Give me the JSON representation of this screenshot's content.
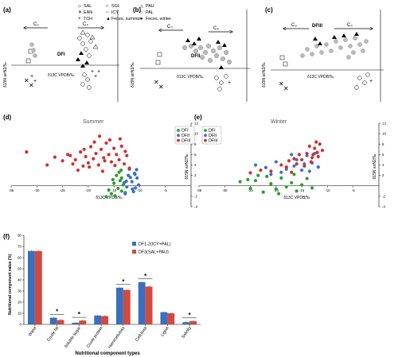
{
  "panels": {
    "a": {
      "label": "(a)",
      "c3": "C₃",
      "c4": "C₄",
      "region": "DFI"
    },
    "b": {
      "label": "(b)",
      "c3": "C₃",
      "c4": "C₄",
      "region": "DFII"
    },
    "c": {
      "label": "(c)",
      "c3": "C₃",
      "c4": "C₄",
      "region": "DFIII"
    },
    "d": {
      "label": "(d)",
      "title": "Summer"
    },
    "e": {
      "label": "(e)",
      "title": "Winter"
    },
    "f": {
      "label": "(f)"
    }
  },
  "axis_labels": {
    "x": "δ13C VPDB/‰",
    "y": "δ15N airN2/‰"
  },
  "legend_species": [
    "SAL",
    "SGL",
    "PAU",
    "EAN",
    "ICY",
    "PAL",
    "TCH",
    "Feces, summer",
    "Feces, winter"
  ],
  "legend_groups": [
    "DFI",
    "DFII",
    "DFIII"
  ],
  "colors": {
    "DFI": "#2aa02a",
    "DFII": "#3a6fd0",
    "DFIII": "#d03030",
    "bar1": "#3a6fc0",
    "bar2": "#d04a40"
  },
  "chart_data": [
    {
      "type": "scatter",
      "panel": "d",
      "title": "Summer",
      "xlabel": "δ13C VPDB/‰",
      "ylabel": "δ15N airN2/‰",
      "xlim": [
        -35,
        0
      ],
      "ylim": [
        -4,
        12
      ],
      "xticks": [
        -35,
        -30,
        -25,
        -20,
        -15,
        -10,
        -5
      ],
      "yticks": [
        -4,
        -2,
        2,
        4,
        6,
        8,
        10,
        12
      ],
      "legend": [
        "DFI",
        "DFII",
        "DFIII"
      ],
      "series": [
        {
          "name": "DFI",
          "points": [
            [
              -13.5,
              1.5
            ],
            [
              -14.5,
              2.0
            ],
            [
              -13.8,
              1.0
            ],
            [
              -15.0,
              0.5
            ],
            [
              -14.2,
              -0.5
            ],
            [
              -13.5,
              -1.0
            ],
            [
              -15.5,
              -1.5
            ],
            [
              -16.0,
              -0.8
            ],
            [
              -14.0,
              2.6
            ],
            [
              -13.2,
              0.2
            ],
            [
              -12.8,
              -1.3
            ],
            [
              -14.8,
              -1.9
            ],
            [
              -16.5,
              -2.1
            ],
            [
              -13.6,
              3.0
            ],
            [
              -15.2,
              1.2
            ]
          ]
        },
        {
          "name": "DFII",
          "points": [
            [
              -10.5,
              1.5
            ],
            [
              -11.0,
              2.4
            ],
            [
              -12.0,
              3.2
            ],
            [
              -11.5,
              0.8
            ],
            [
              -10.8,
              -0.4
            ],
            [
              -12.5,
              -0.2
            ],
            [
              -11.2,
              -1.1
            ],
            [
              -12.8,
              -1.5
            ],
            [
              -10.2,
              0.2
            ],
            [
              -11.8,
              1.6
            ],
            [
              -12.2,
              2.0
            ],
            [
              -10.6,
              3.1
            ],
            [
              -13.0,
              0.6
            ],
            [
              -11.4,
              -0.6
            ],
            [
              -12.6,
              0.9
            ],
            [
              -10.9,
              2.2
            ]
          ]
        },
        {
          "name": "DFIII",
          "points": [
            [
              -32,
              6.5
            ],
            [
              -28,
              4.0
            ],
            [
              -26.5,
              5.5
            ],
            [
              -25,
              4.8
            ],
            [
              -24,
              6.0
            ],
            [
              -23,
              4.2
            ],
            [
              -22.5,
              5.0
            ],
            [
              -21.5,
              6.5
            ],
            [
              -21,
              3.8
            ],
            [
              -20.5,
              5.6
            ],
            [
              -20,
              4.4
            ],
            [
              -19.5,
              7.5
            ],
            [
              -19,
              5.2
            ],
            [
              -18.5,
              6.2
            ],
            [
              -18,
              4.0
            ],
            [
              -17.5,
              7.0
            ],
            [
              -17,
              5.4
            ],
            [
              -16.5,
              8.2
            ],
            [
              -16,
              6.0
            ],
            [
              -15.5,
              4.6
            ],
            [
              -15,
              7.2
            ],
            [
              -14.5,
              6.0
            ],
            [
              -14,
              5.0
            ],
            [
              -13.5,
              7.6
            ],
            [
              -13,
              4.2
            ],
            [
              -12.5,
              5.8
            ],
            [
              -12,
              3.4
            ],
            [
              -18.8,
              8.4
            ],
            [
              -17.8,
              9.5
            ],
            [
              -16.8,
              4.8
            ],
            [
              -15.8,
              8.8
            ],
            [
              -14.8,
              3.9
            ],
            [
              -22,
              3.0
            ],
            [
              -23.5,
              5.8
            ],
            [
              -20.8,
              7.0
            ],
            [
              -19.8,
              3.6
            ],
            [
              -12.8,
              6.6
            ],
            [
              -13.8,
              9.0
            ],
            [
              -17.2,
              2.8
            ]
          ]
        }
      ]
    },
    {
      "type": "scatter",
      "panel": "e",
      "title": "Winter",
      "xlabel": "δ13C VPDB/‰",
      "ylabel": "δ15N airN2/‰",
      "xlim": [
        -35,
        0
      ],
      "ylim": [
        -4,
        12
      ],
      "xticks": [
        -35,
        -30,
        -25,
        -20,
        -15,
        -10,
        -5
      ],
      "yticks": [
        -4,
        -2,
        2,
        4,
        6,
        8,
        10,
        12
      ],
      "legend": [
        "DFI",
        "DFII",
        "DFIII"
      ],
      "series": [
        {
          "name": "DFI",
          "points": [
            [
              -27,
              0.8
            ],
            [
              -25,
              -0.5
            ],
            [
              -24,
              1.0
            ],
            [
              -22.5,
              -1.2
            ],
            [
              -21,
              0.4
            ],
            [
              -20,
              -0.6
            ],
            [
              -19,
              1.5
            ],
            [
              -18,
              -0.2
            ],
            [
              -17,
              0.6
            ],
            [
              -16,
              -1.0
            ],
            [
              -15,
              0.2
            ],
            [
              -14,
              1.4
            ],
            [
              -13,
              -0.4
            ],
            [
              -23.5,
              2.0
            ],
            [
              -19.5,
              -1.5
            ],
            [
              -16.5,
              2.2
            ],
            [
              -21.8,
              1.8
            ],
            [
              -25.5,
              1.2
            ]
          ]
        },
        {
          "name": "DFII",
          "points": [
            [
              -24,
              4.0
            ],
            [
              -22,
              3.5
            ],
            [
              -20,
              4.6
            ],
            [
              -18,
              3.2
            ],
            [
              -16,
              5.0
            ],
            [
              -14,
              5.8
            ],
            [
              -13,
              4.4
            ],
            [
              -12.5,
              6.2
            ],
            [
              -15,
              3.0
            ],
            [
              -17,
              6.0
            ],
            [
              -19,
              2.6
            ],
            [
              -13.5,
              2.8
            ],
            [
              -11.8,
              3.6
            ],
            [
              -21,
              2.2
            ],
            [
              -14.5,
              4.2
            ],
            [
              -16.5,
              3.8
            ]
          ]
        },
        {
          "name": "DFIII",
          "points": [
            [
              -25,
              2.5
            ],
            [
              -23,
              3.0
            ],
            [
              -21,
              2.8
            ],
            [
              -19,
              4.0
            ],
            [
              -18,
              3.6
            ],
            [
              -17,
              2.6
            ],
            [
              -16,
              4.2
            ],
            [
              -15,
              5.0
            ],
            [
              -14,
              6.2
            ],
            [
              -13,
              5.4
            ],
            [
              -12.5,
              7.2
            ],
            [
              -12,
              6.4
            ],
            [
              -11.5,
              8.0
            ],
            [
              -11,
              6.8
            ],
            [
              -13.5,
              7.6
            ],
            [
              -12.2,
              8.4
            ],
            [
              -14.5,
              3.8
            ],
            [
              -15.5,
              6.0
            ],
            [
              -16.5,
              5.2
            ],
            [
              -11.8,
              5.6
            ],
            [
              -13.2,
              4.6
            ],
            [
              -12.8,
              6.0
            ],
            [
              -17.5,
              4.8
            ]
          ]
        }
      ]
    },
    {
      "type": "bar",
      "panel": "f",
      "ylabel": "Nutritional component value (%)",
      "xlabel": "Nutritional component types",
      "ylim": [
        0,
        80
      ],
      "yticks": [
        0,
        10,
        20,
        30,
        40,
        50,
        60,
        70,
        80
      ],
      "categories": [
        "Water",
        "Crude fat",
        "Soluble sugar",
        "Crude protein",
        "Hemicellulose",
        "Cellulose",
        "Lignin",
        "Salinity"
      ],
      "series": [
        {
          "name": "DF1-2(ICY+PAL)",
          "values": [
            66,
            6,
            1.5,
            8,
            33,
            38,
            11,
            2
          ]
        },
        {
          "name": "DF3(SAL+PAU)",
          "values": [
            66,
            4,
            3.5,
            7.5,
            31,
            34,
            10,
            3
          ]
        }
      ],
      "significance": [
        "",
        "*",
        "*",
        "",
        "*",
        "*",
        "",
        "*"
      ]
    }
  ]
}
